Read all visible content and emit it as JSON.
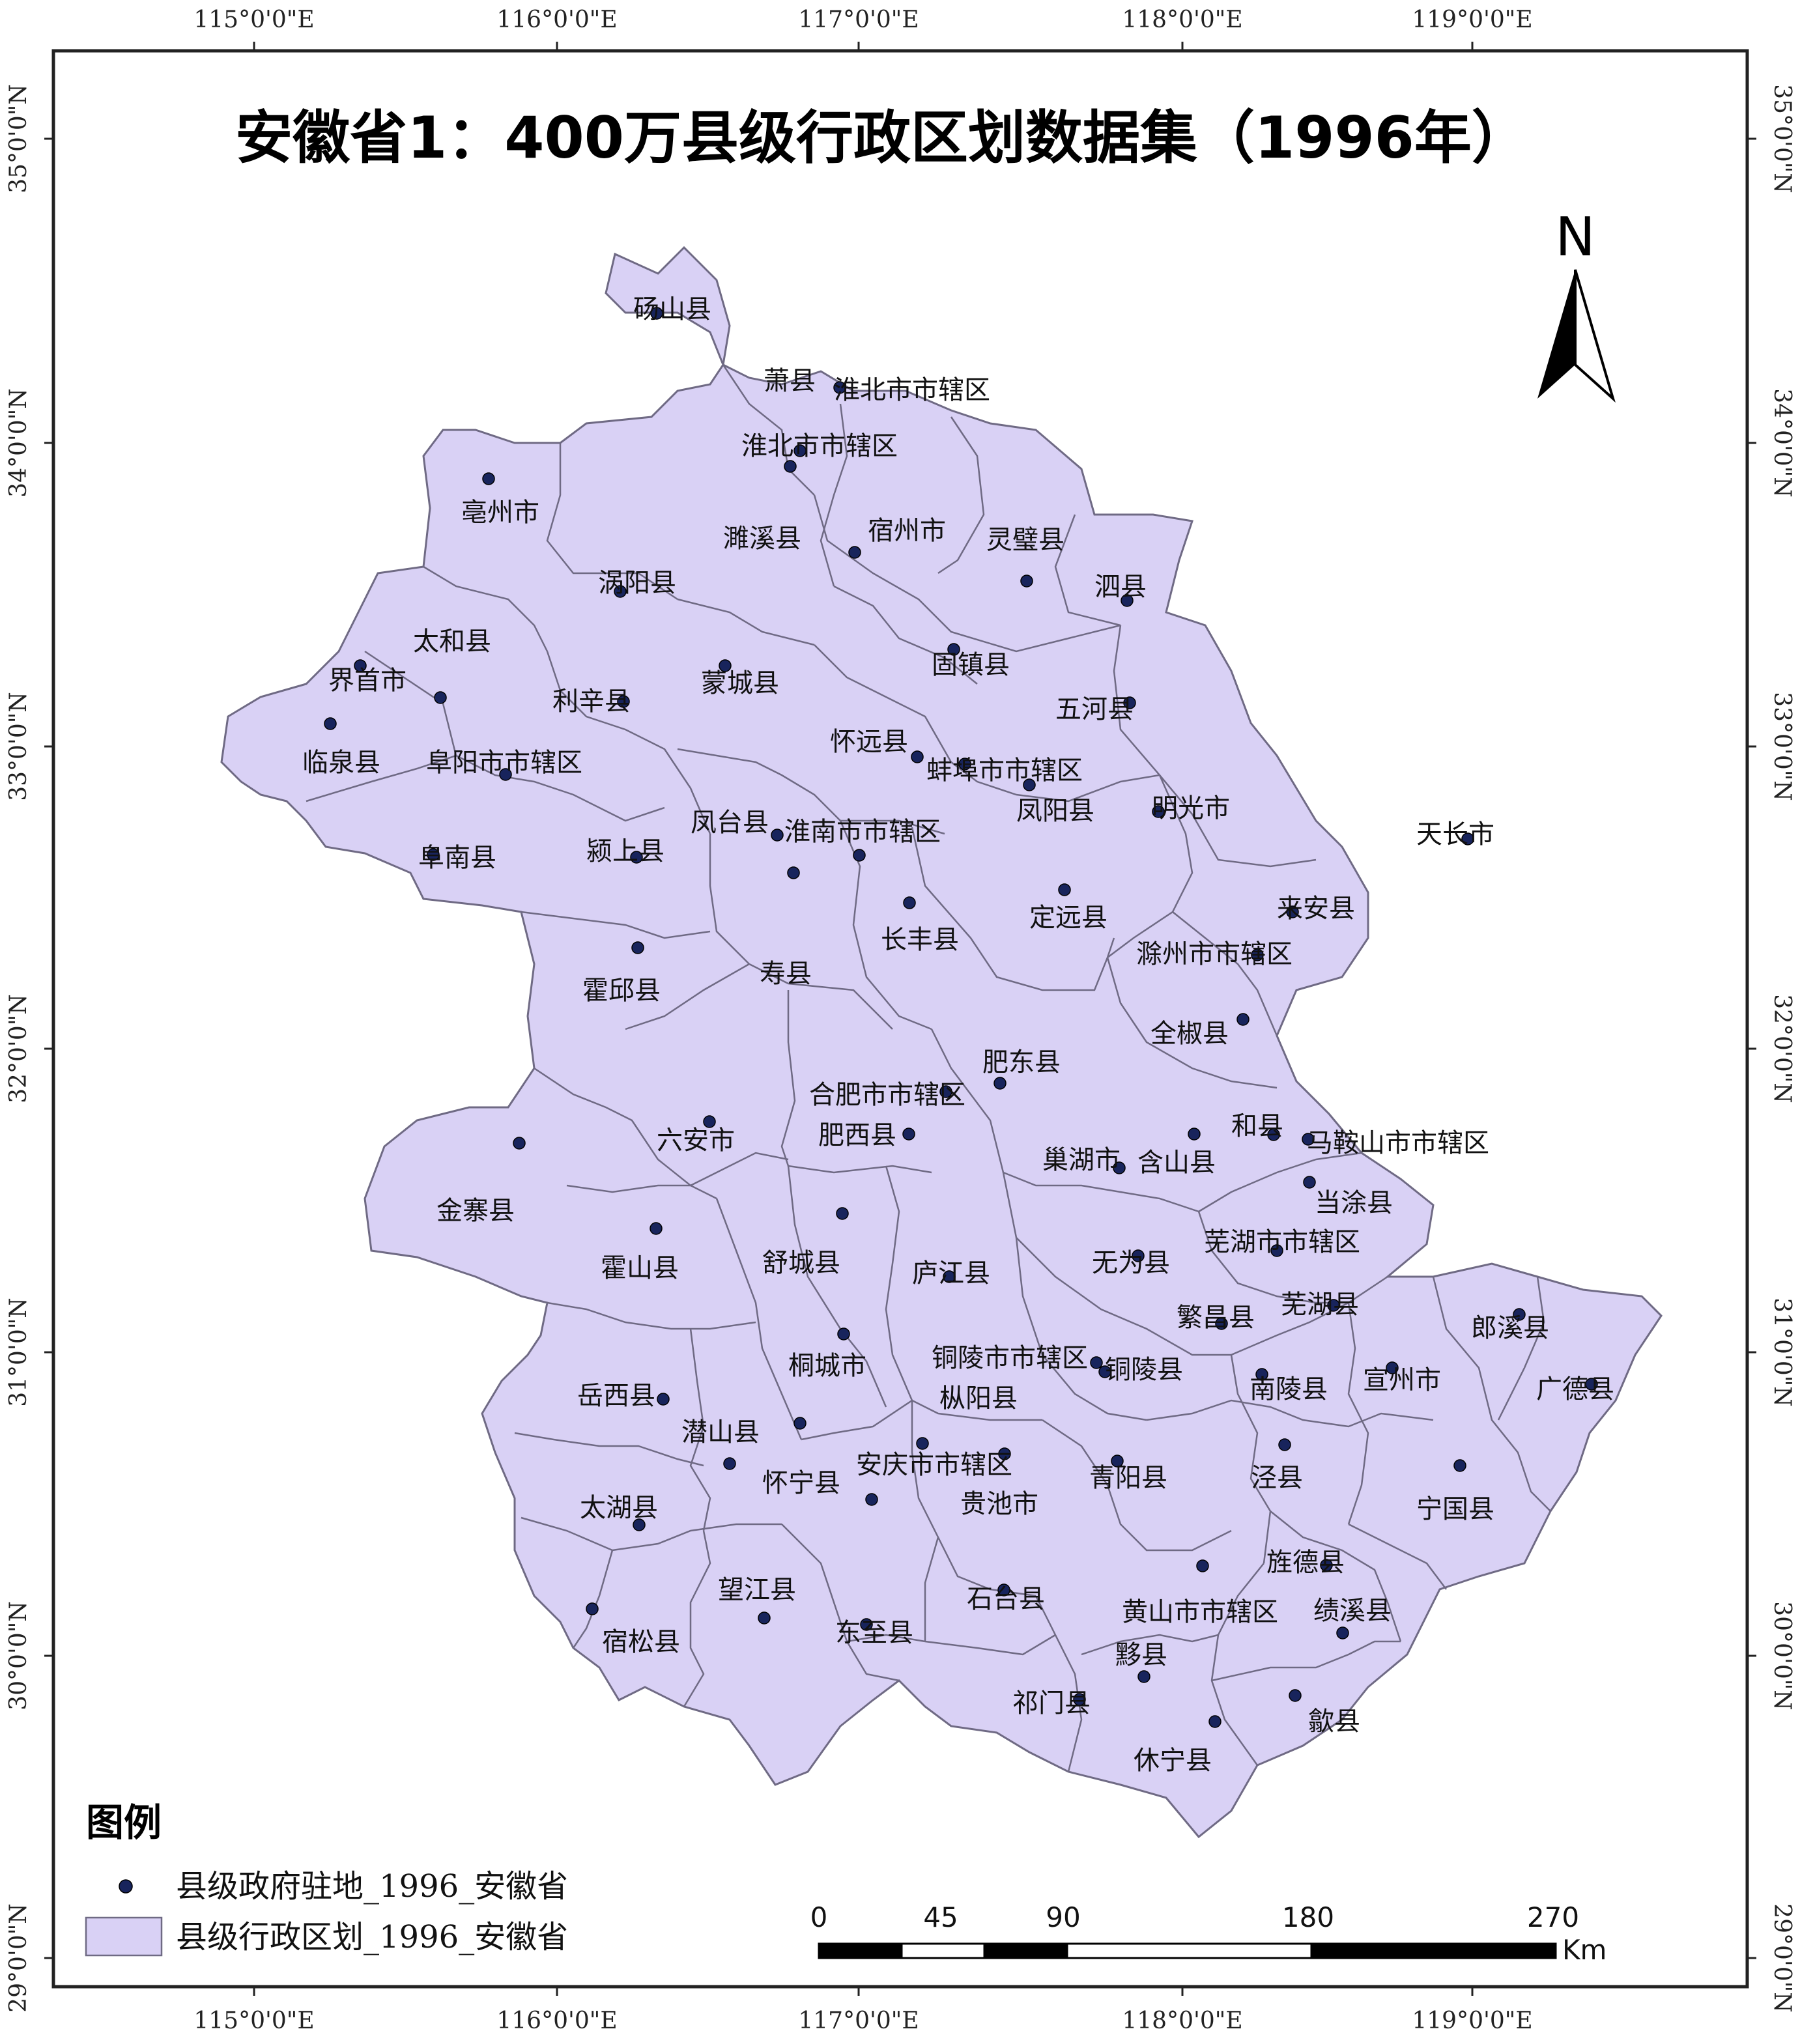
{
  "map": {
    "title": "安徽省1：400万县级行政区划数据集（1996年）",
    "lon_ticks": [
      "115°0'0\"E",
      "116°0'0\"E",
      "117°0'0\"E",
      "118°0'0\"E",
      "119°0'0\"E"
    ],
    "lat_ticks": [
      "35°0'0\"N",
      "34°0'0\"N",
      "33°0'0\"N",
      "32°0'0\"N",
      "31°0'0\"N",
      "30°0'0\"N",
      "29°0'0\"N"
    ],
    "fill_color": "#d9d1f5",
    "seat_color": "#18245c",
    "county_labels": [
      "砀山县",
      "萧县",
      "淮北市市辖区",
      "淮北市市辖区",
      "亳州市",
      "濉溪县",
      "宿州市",
      "灵璧县",
      "涡阳县",
      "泗县",
      "太和县",
      "界首市",
      "固镇县",
      "利辛县",
      "蒙城县",
      "五河县",
      "临泉县",
      "阜阳市市辖区",
      "怀远县",
      "蚌埠市市辖区",
      "凤阳县",
      "明光市",
      "天长市",
      "凤台县",
      "淮南市市辖区",
      "阜南县",
      "颍上县",
      "来安县",
      "定远县",
      "长丰县",
      "寿县",
      "霍邱县",
      "滁州市市辖区",
      "全椒县",
      "肥东县",
      "合肥市市辖区",
      "六安市",
      "肥西县",
      "和县",
      "马鞍山市市辖区",
      "巢湖市",
      "含山县",
      "金寨县",
      "当涂县",
      "芜湖市市辖区",
      "霍山县",
      "舒城县",
      "庐江县",
      "无为县",
      "繁昌县",
      "芜湖县",
      "郎溪县",
      "桐城市",
      "铜陵市市辖区",
      "铜陵县",
      "岳西县",
      "宣州市",
      "枞阳县",
      "南陵县",
      "广德县",
      "潜山县",
      "安庆市市辖区",
      "泾县",
      "怀宁县",
      "青阳县",
      "太湖县",
      "贵池市",
      "宁国县",
      "旌德县",
      "望江县",
      "石台县",
      "黄山市市辖区",
      "绩溪县",
      "东至县",
      "宿松县",
      "黟县",
      "祁门县",
      "歙县",
      "休宁县"
    ]
  },
  "north_arrow": {
    "label": "N"
  },
  "legend": {
    "title": "图例",
    "point_label": "县级政府驻地_1996_安徽省",
    "polygon_label": "县级行政区划_1996_安徽省"
  },
  "scale_bar": {
    "ticks": [
      "0",
      "45",
      "90",
      "180",
      "270"
    ],
    "unit": "Km"
  }
}
